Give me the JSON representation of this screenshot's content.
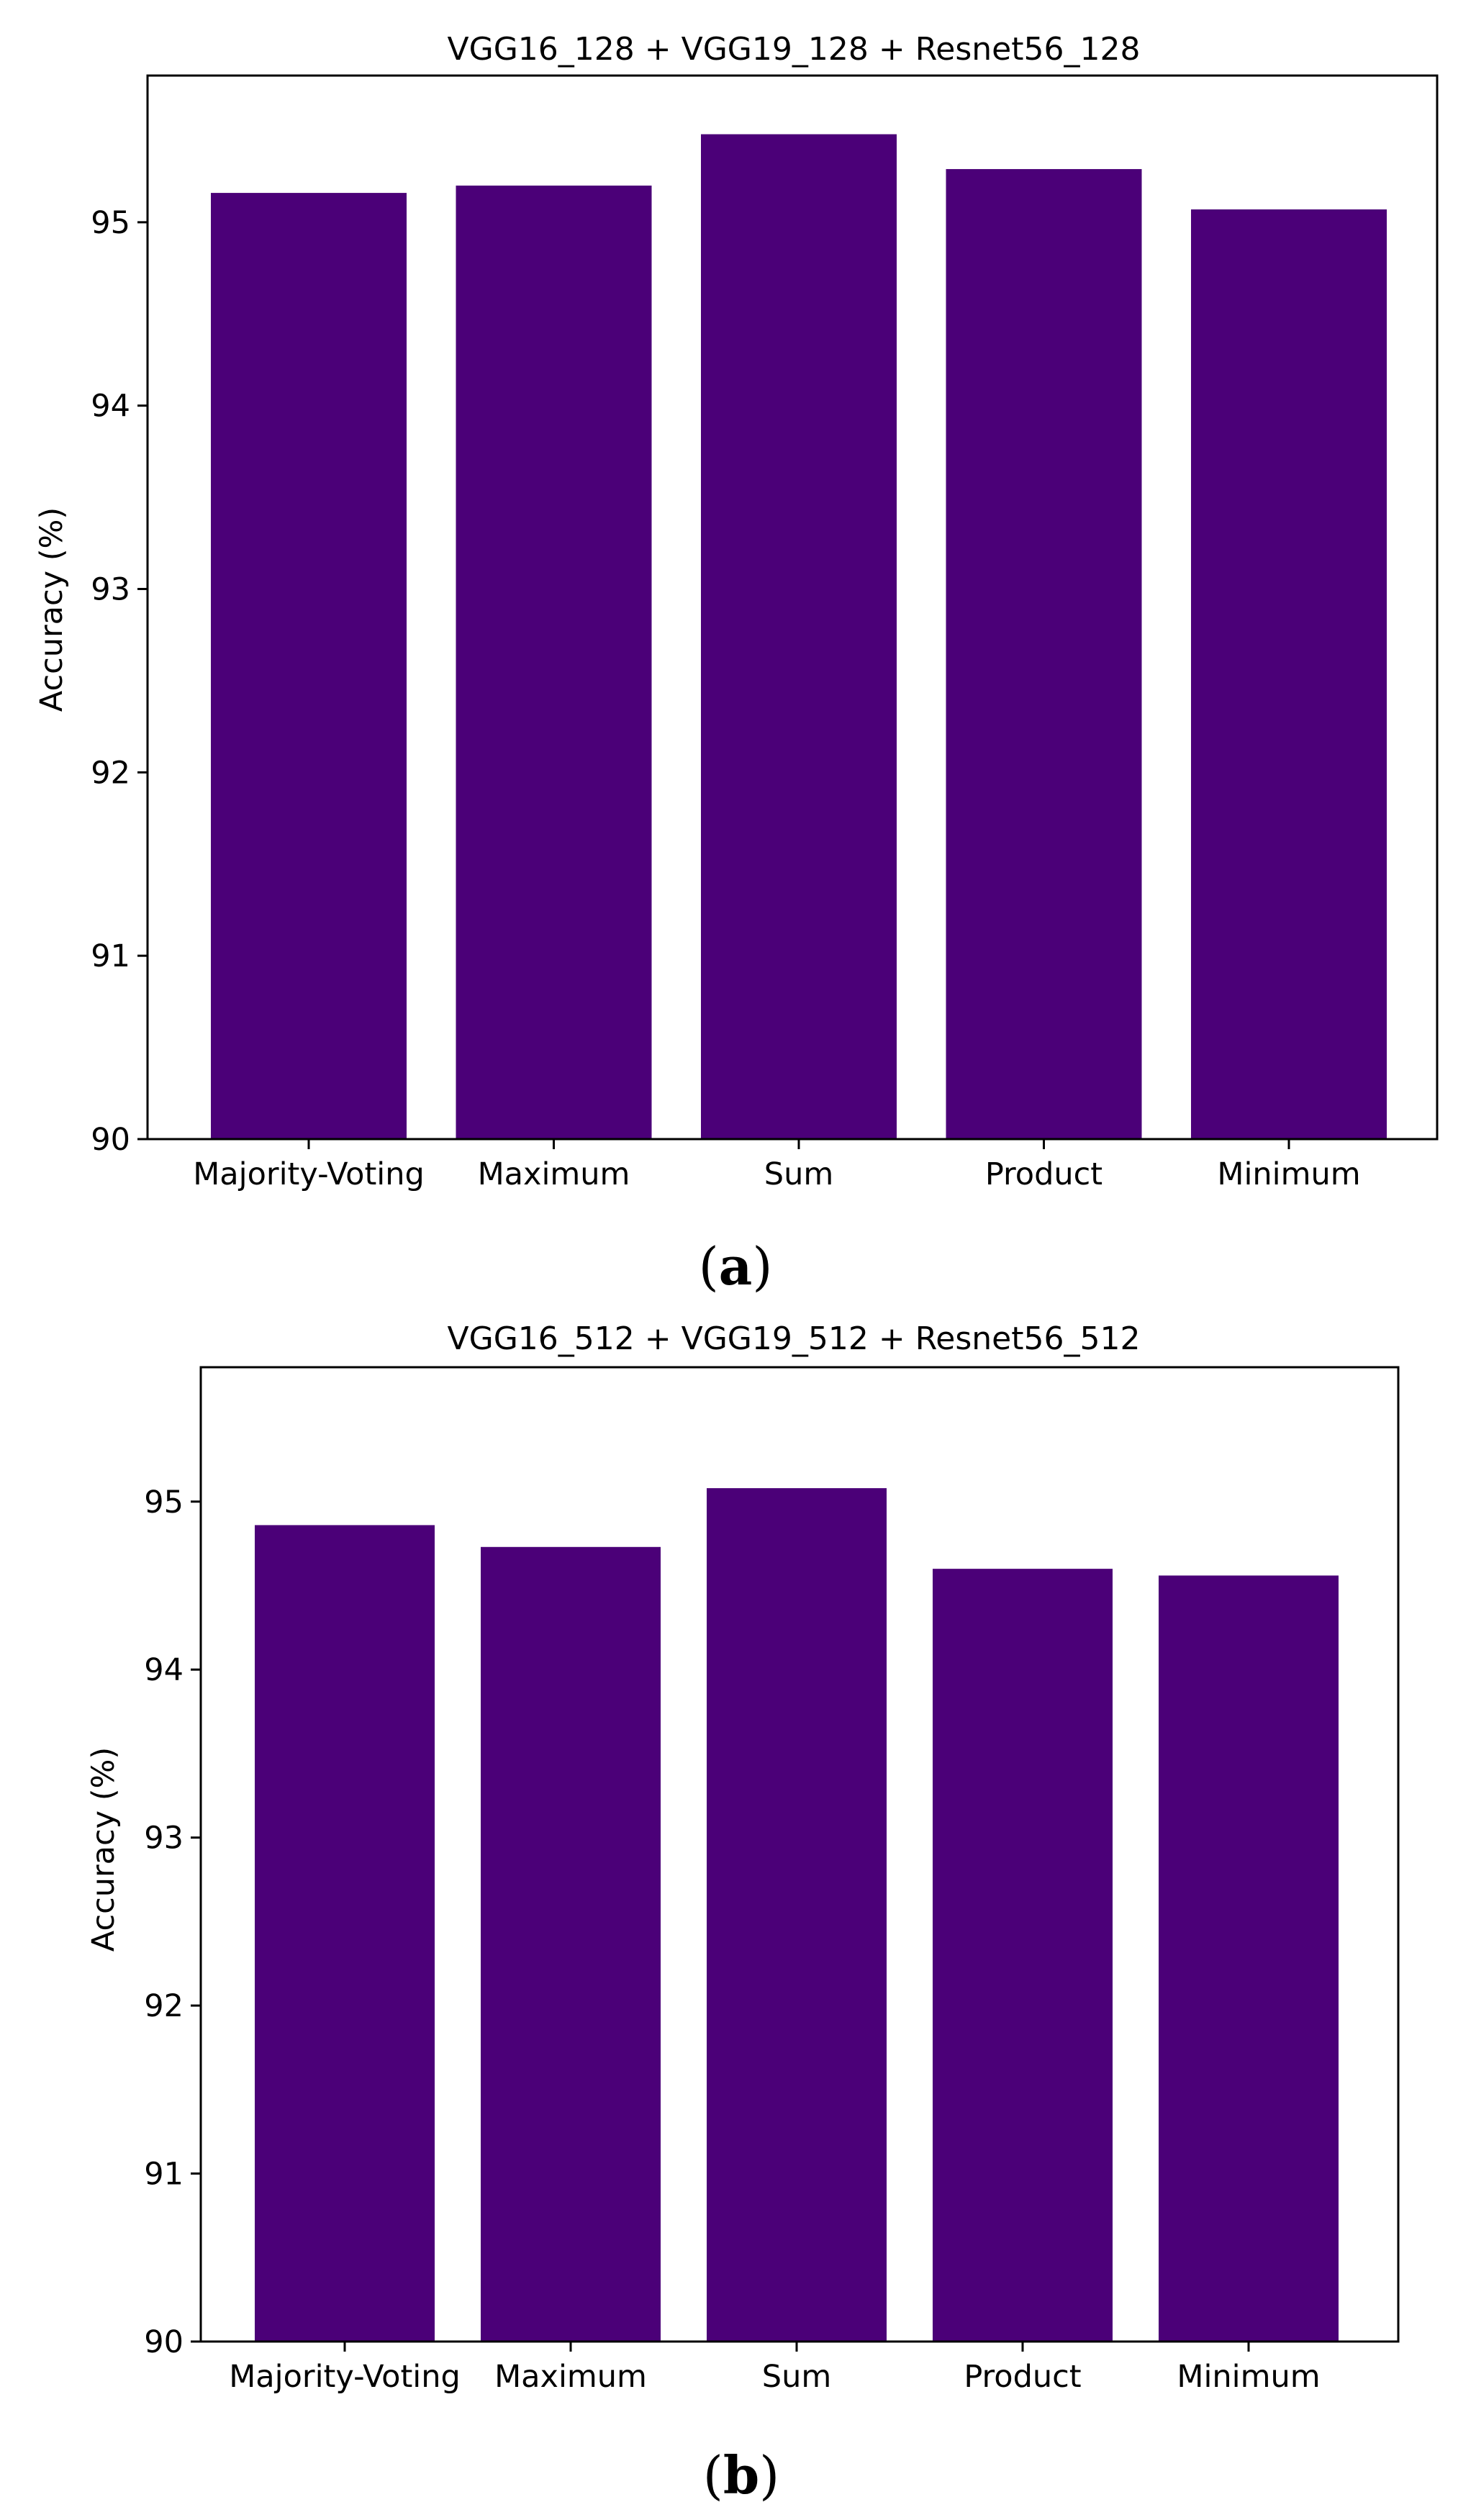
{
  "bar_color": "#4b0078",
  "chart_data": [
    {
      "type": "bar",
      "title": "VGG16_128 + VGG19_128 + Resnet56_128",
      "panel_label": "a",
      "xlabel": "",
      "ylabel": "Accuracy (%)",
      "categories": [
        "Majority-Voting",
        "Maximum",
        "Sum",
        "Product",
        "Minimum"
      ],
      "values": [
        95.16,
        95.2,
        95.48,
        95.29,
        95.07
      ],
      "ylim": [
        90,
        95.8
      ],
      "yticks": [
        90,
        91,
        92,
        93,
        94,
        95
      ],
      "grid": false,
      "legend": "none"
    },
    {
      "type": "bar",
      "title": "VGG16_512 + VGG19_512 + Resnet56_512",
      "panel_label": "b",
      "xlabel": "",
      "ylabel": "Accuracy (%)",
      "categories": [
        "Majority-Voting",
        "Maximum",
        "Sum",
        "Product",
        "Minimum"
      ],
      "values": [
        94.86,
        94.73,
        95.08,
        94.6,
        94.56
      ],
      "ylim": [
        90,
        95.8
      ],
      "yticks": [
        90,
        91,
        92,
        93,
        94,
        95
      ],
      "grid": false,
      "legend": "none"
    }
  ]
}
